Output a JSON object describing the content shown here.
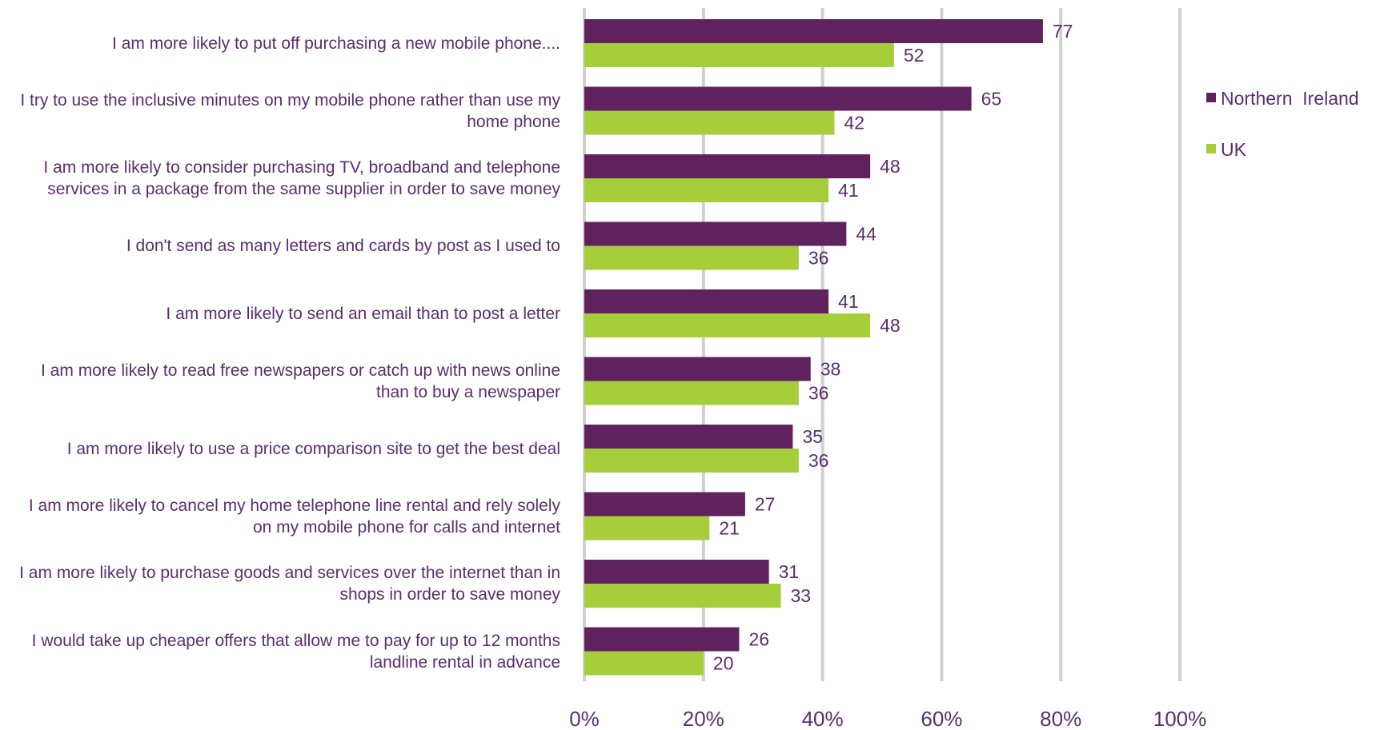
{
  "chart_data": {
    "type": "bar",
    "orientation": "horizontal",
    "categories": [
      "I am more likely to put off purchasing a new mobile phone....",
      "I try to use the inclusive minutes on my mobile phone rather than use my home phone",
      "I am more likely to consider purchasing TV, broadband and telephone services in a package from the same supplier in order to save money",
      "I don't send as many letters and cards by post as I used to",
      "I am more likely to send an email than to post a letter",
      "I am more likely to read free newspapers or catch up with news online than to buy a newspaper",
      "I am more likely to use a price comparison site to get the best deal",
      "I am more likely to cancel my home telephone line rental and rely solely on my mobile phone for calls and internet",
      "I am more likely to purchase goods and services over the internet than in shops in order to save money",
      "I would take up cheaper offers that allow me to pay for up to 12 months landline rental in advance"
    ],
    "series": [
      {
        "name": "Northern  Ireland",
        "color": "#60215f",
        "values": [
          77,
          65,
          48,
          44,
          41,
          38,
          35,
          27,
          31,
          26
        ]
      },
      {
        "name": "UK",
        "color": "#a5ce3a",
        "values": [
          52,
          42,
          41,
          36,
          48,
          36,
          36,
          21,
          33,
          20
        ]
      }
    ],
    "xlim": [
      0,
      100
    ],
    "x_ticks": [
      "0%",
      "20%",
      "40%",
      "60%",
      "80%",
      "100%"
    ],
    "grid": true,
    "legend_position": "right",
    "title": "",
    "xlabel": "",
    "ylabel": ""
  }
}
